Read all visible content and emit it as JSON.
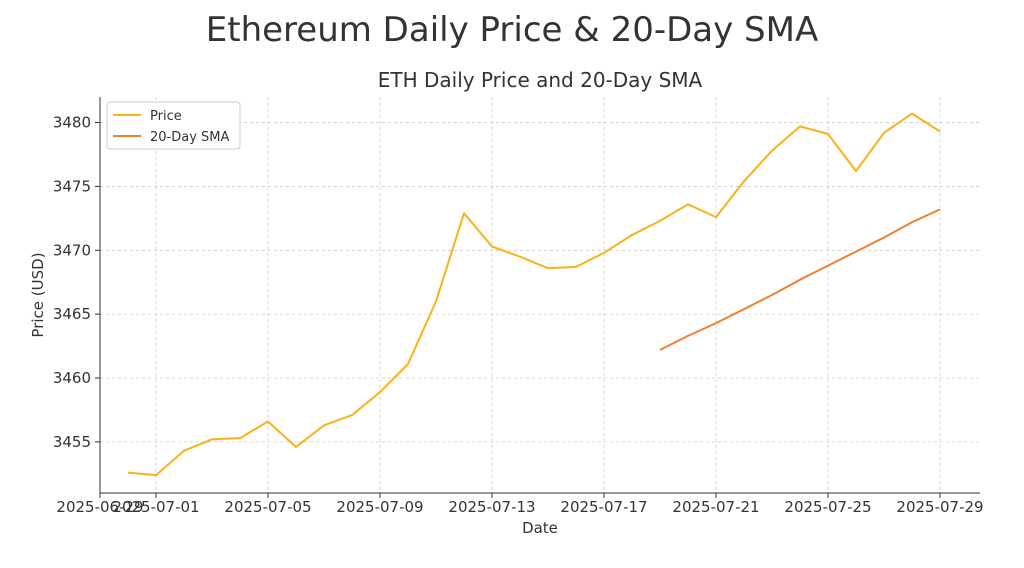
{
  "page": {
    "title": "Ethereum Daily Price & 20-Day SMA"
  },
  "chart_data": {
    "type": "line",
    "title": "ETH Daily Price and 20-Day SMA",
    "xlabel": "Date",
    "ylabel": "Price (USD)",
    "xlim": [
      "2025-06-29",
      "2025-07-29"
    ],
    "ylim": [
      3451,
      3482
    ],
    "grid": true,
    "legend_position": "top-left",
    "x_ticks": [
      "2025-06-29",
      "2025-07-01",
      "2025-07-05",
      "2025-07-09",
      "2025-07-13",
      "2025-07-17",
      "2025-07-21",
      "2025-07-25",
      "2025-07-29"
    ],
    "x_tick_labels": [
      "2025-06-29",
      "2025-07-01",
      "2025-07-05",
      "2025-07-09",
      "2025-07-13",
      "2025-07-17",
      "2025-07-21",
      "2025-07-25",
      "2025-07-29"
    ],
    "y_ticks": [
      3455,
      3460,
      3465,
      3470,
      3475,
      3480
    ],
    "series": [
      {
        "name": "Price",
        "color": "#FBB117",
        "x": [
          "2025-06-30",
          "2025-07-01",
          "2025-07-02",
          "2025-07-03",
          "2025-07-04",
          "2025-07-05",
          "2025-07-06",
          "2025-07-07",
          "2025-07-08",
          "2025-07-09",
          "2025-07-10",
          "2025-07-11",
          "2025-07-12",
          "2025-07-13",
          "2025-07-14",
          "2025-07-15",
          "2025-07-16",
          "2025-07-17",
          "2025-07-18",
          "2025-07-19",
          "2025-07-20",
          "2025-07-21",
          "2025-07-22",
          "2025-07-23",
          "2025-07-24",
          "2025-07-25",
          "2025-07-26",
          "2025-07-27",
          "2025-07-28",
          "2025-07-29"
        ],
        "values": [
          3452.6,
          3452.4,
          3454.3,
          3455.2,
          3455.3,
          3456.6,
          3454.6,
          3456.3,
          3457.1,
          3458.9,
          3461.1,
          3466.0,
          3472.9,
          3470.3,
          3469.5,
          3468.6,
          3468.7,
          3469.8,
          3471.2,
          3472.3,
          3473.6,
          3472.6,
          3475.4,
          3477.8,
          3479.7,
          3479.1,
          3476.2,
          3479.2,
          3480.7,
          3479.3
        ]
      },
      {
        "name": "20-Day SMA",
        "color": "#F07F30",
        "x": [
          "2025-07-19",
          "2025-07-20",
          "2025-07-21",
          "2025-07-22",
          "2025-07-23",
          "2025-07-24",
          "2025-07-25",
          "2025-07-26",
          "2025-07-27",
          "2025-07-28",
          "2025-07-29"
        ],
        "values": [
          3462.2,
          3463.3,
          3464.3,
          3465.4,
          3466.5,
          3467.7,
          3468.8,
          3469.9,
          3471.0,
          3472.2,
          3473.2
        ]
      }
    ]
  }
}
